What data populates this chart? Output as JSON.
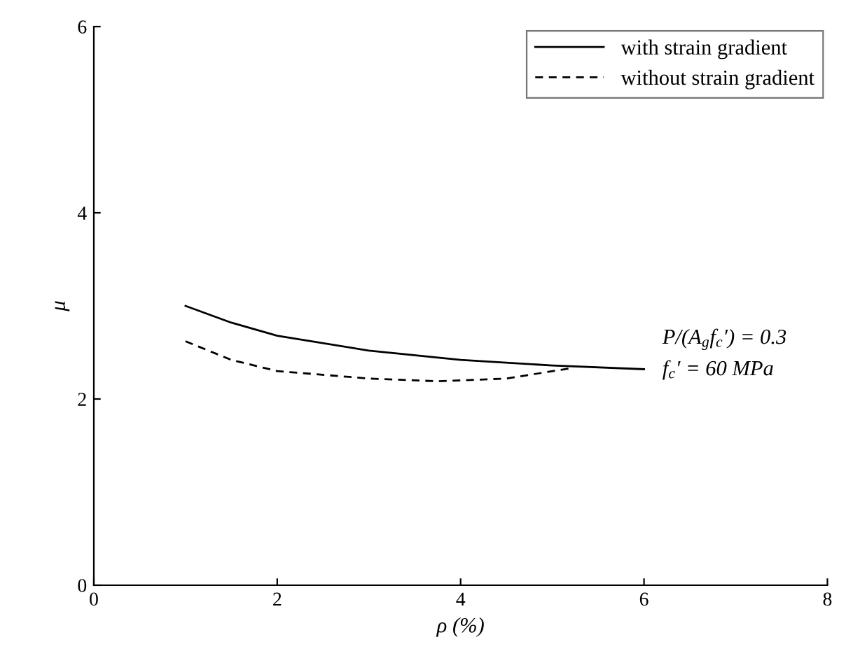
{
  "chart_data": {
    "type": "line",
    "xlabel": "ρ (%)",
    "ylabel": "μ",
    "xlim": [
      0,
      8
    ],
    "xticks": [
      0,
      2,
      4,
      6,
      8
    ],
    "ylim": [
      0,
      6
    ],
    "yticks": [
      0,
      2,
      4,
      6
    ],
    "grid": false,
    "legend": "top right",
    "marker": "none",
    "series": [
      {
        "name": "with strain gradient",
        "color": "#000000",
        "line_style": "solid",
        "x": [
          1,
          1.5,
          2,
          3,
          4,
          5,
          6
        ],
        "values": [
          3.0,
          2.82,
          2.68,
          2.52,
          2.42,
          2.36,
          2.32
        ]
      },
      {
        "name": "without strain gradient",
        "color": "#000000",
        "line_style": "dashed",
        "x": [
          1,
          1.5,
          2,
          3,
          3.75,
          4.5,
          5.2
        ],
        "values": [
          2.62,
          2.42,
          2.3,
          2.22,
          2.19,
          2.22,
          2.33
        ]
      }
    ],
    "annotations": [
      "P/(A$_{g}$f$_{c}$′) = 0.3",
      "f$_{c}$′ = 60 MPa"
    ]
  }
}
